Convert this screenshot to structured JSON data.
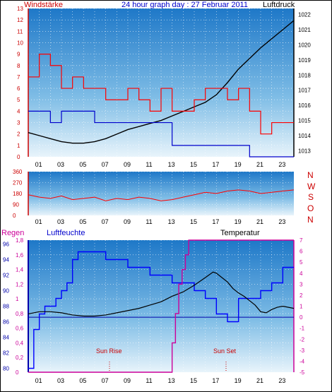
{
  "header": {
    "left_label": "Windstärke",
    "title": "24 hour graph day : 27 Februar 2011",
    "right_label": "Luftdruck"
  },
  "mid": {
    "compass": [
      "N",
      "W",
      "S",
      "O",
      "N"
    ]
  },
  "bottom": {
    "left_label": "Regen",
    "humidity_label": "Luftfeuchte",
    "temp_label": "Temperatur",
    "sunrise_label": "Sun Rise",
    "sunset_label": "Sun Set"
  },
  "colors": {
    "wind": "#ff0000",
    "gust": "#0000cc",
    "pressure": "#000000",
    "rain": "#cc0099",
    "humidity": "#0000ff",
    "temperature": "#000000",
    "frame_red": "#cc0000",
    "frame_blue": "#0000aa"
  },
  "chart_data": [
    {
      "type": "line",
      "x_ticks": [
        "01",
        "03",
        "05",
        "07",
        "09",
        "11",
        "13",
        "15",
        "17",
        "19",
        "21",
        "23"
      ],
      "y_left": {
        "label": "Windstärke",
        "ticks": [
          0,
          1,
          2,
          3,
          4,
          5,
          6,
          7,
          8,
          9,
          10,
          11,
          12,
          13
        ],
        "ylim": [
          0,
          13
        ]
      },
      "y_right": {
        "label": "Luftdruck",
        "ticks": [
          1013,
          1014,
          1015,
          1016,
          1017,
          1018,
          1019,
          1020,
          1021,
          1022
        ],
        "ylim": [
          1012.6,
          1022.4
        ]
      },
      "grid": true,
      "series": [
        {
          "x": [
            0,
            1,
            2,
            3,
            4,
            5,
            6,
            7,
            8,
            9,
            10,
            11,
            12,
            13,
            14,
            15,
            16,
            17,
            18,
            19,
            20,
            21,
            22,
            23,
            24
          ],
          "values": [
            1014.2,
            1014.0,
            1013.8,
            1013.6,
            1013.5,
            1013.5,
            1013.6,
            1013.8,
            1014.1,
            1014.4,
            1014.6,
            1014.8,
            1015.0,
            1015.3,
            1015.6,
            1015.9,
            1016.2,
            1016.7,
            1017.5,
            1018.4,
            1019.1,
            1019.8,
            1020.4,
            1021.0,
            1021.6
          ]
        },
        {
          "x": [
            0,
            1,
            2,
            3,
            4,
            5,
            6,
            7,
            8,
            9,
            10,
            11,
            12,
            13,
            14,
            15,
            16,
            17,
            18,
            19,
            20,
            21,
            22,
            23,
            24
          ],
          "values": [
            7,
            9,
            8,
            6,
            7,
            6,
            6,
            5,
            5,
            6,
            5,
            4,
            6,
            4,
            4,
            5,
            6,
            6,
            5,
            6,
            4,
            2,
            3,
            3,
            3
          ]
        },
        {
          "x": [
            0,
            1,
            2,
            3,
            4,
            5,
            6,
            7,
            8,
            9,
            10,
            11,
            12,
            13,
            14,
            15,
            16,
            17,
            18,
            19,
            20,
            21,
            22,
            23,
            24
          ],
          "values": [
            4,
            4,
            3,
            4,
            4,
            4,
            3,
            3,
            3,
            3,
            3,
            3,
            3,
            1,
            1,
            1,
            1,
            1,
            1,
            1,
            0,
            0,
            0,
            0,
            0
          ]
        }
      ]
    },
    {
      "type": "line",
      "x_ticks": [
        "01",
        "03",
        "05",
        "07",
        "09",
        "11",
        "13",
        "15",
        "17",
        "19",
        "21",
        "23"
      ],
      "y_left": {
        "ticks": [
          0,
          90,
          180,
          270,
          360
        ],
        "ylim": [
          0,
          360
        ]
      },
      "y_right": {
        "ticks": [
          "N",
          "W",
          "S",
          "O",
          "N"
        ]
      },
      "series": [
        {
          "x": [
            0,
            1,
            2,
            3,
            4,
            5,
            6,
            7,
            8,
            9,
            10,
            11,
            12,
            13,
            14,
            15,
            16,
            17,
            18,
            19,
            20,
            21,
            22,
            23,
            24
          ],
          "values": [
            170,
            150,
            140,
            160,
            130,
            140,
            150,
            120,
            140,
            130,
            150,
            140,
            120,
            130,
            150,
            170,
            190,
            180,
            200,
            210,
            200,
            180,
            190,
            200,
            210
          ]
        }
      ]
    },
    {
      "type": "line",
      "x_ticks": [
        "01",
        "03",
        "05",
        "07",
        "09",
        "11",
        "13",
        "15",
        "17",
        "19",
        "21",
        "23"
      ],
      "y_left_rain": {
        "label": "Regen",
        "ticks": [
          "0",
          "0,2",
          "0,4",
          "0,6",
          "0,8",
          "1",
          "1,2",
          "1,4",
          "1,6",
          "1,8"
        ],
        "ylim": [
          0,
          1.8
        ]
      },
      "y_left_humidity": {
        "label": "Luftfeuchte",
        "ticks": [
          80,
          82,
          84,
          86,
          88,
          90,
          92,
          94,
          96
        ],
        "ylim": [
          79.5,
          96.5
        ]
      },
      "y_right": {
        "label": "Temperatur",
        "ticks": [
          -5,
          -4,
          -3,
          -2,
          -1,
          0,
          1,
          2,
          3,
          4,
          5,
          6,
          7
        ],
        "ylim": [
          -5,
          7
        ]
      },
      "grid": true,
      "series": [
        {
          "x": [
            0,
            0.5,
            1,
            1.5,
            2,
            2.5,
            3,
            3.5,
            4,
            4.5,
            5,
            6,
            7,
            8,
            9,
            10,
            11,
            12,
            13,
            14,
            15,
            16,
            17,
            18,
            19,
            20,
            21,
            22,
            23,
            24
          ],
          "values": [
            80,
            85,
            87,
            88,
            88,
            89,
            90,
            91,
            94,
            95,
            95,
            95,
            94,
            94,
            93,
            93,
            92,
            92,
            91,
            91,
            90,
            89,
            87,
            86,
            89,
            89,
            90,
            91,
            93,
            93
          ]
        },
        {
          "x": [
            0,
            1,
            2,
            3,
            4,
            5,
            6,
            7,
            8,
            9,
            10,
            11,
            12,
            13,
            14,
            15,
            16,
            16.7,
            17,
            17.5,
            18,
            18.5,
            19,
            19.5,
            20,
            20.5,
            21,
            21.5,
            22,
            22.5,
            23,
            24
          ],
          "values": [
            0.3,
            0.5,
            0.5,
            0.4,
            0.2,
            0.1,
            0.1,
            0.2,
            0.4,
            0.6,
            0.8,
            1.1,
            1.4,
            1.9,
            2.3,
            2.9,
            3.6,
            4.1,
            4.0,
            3.6,
            3.2,
            2.6,
            2.2,
            1.9,
            1.5,
            1.1,
            0.5,
            0.4,
            0.7,
            0.9,
            1.0,
            0.8
          ]
        },
        {
          "x": [
            0,
            12,
            12.6,
            13,
            13.3,
            13.6,
            13.9,
            14.2,
            14.5,
            15,
            24
          ],
          "values": [
            0,
            0,
            0,
            0.4,
            0.8,
            1.2,
            1.4,
            1.6,
            1.8,
            1.8,
            1.8
          ]
        }
      ]
    }
  ]
}
